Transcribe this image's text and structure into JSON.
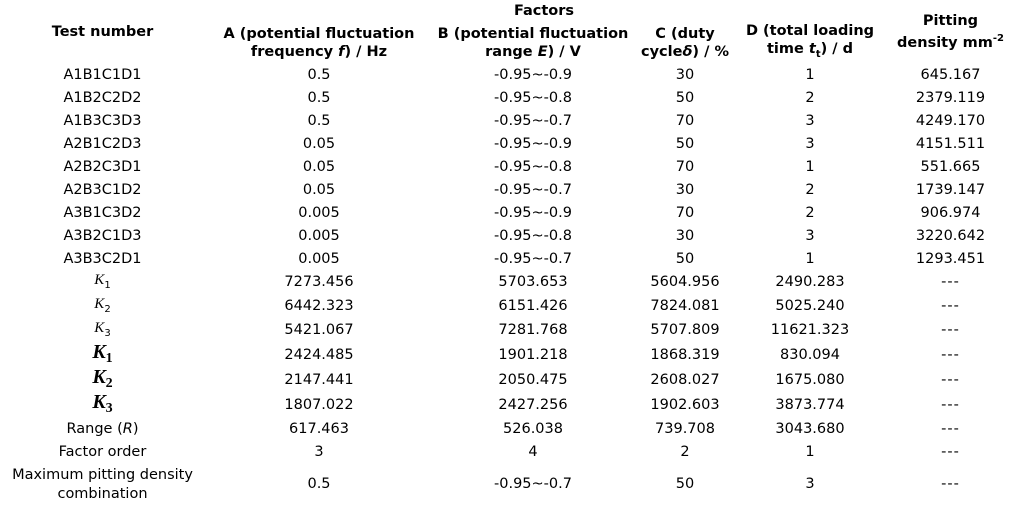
{
  "header": {
    "factors_label": "Factors",
    "test_number": "Test number",
    "col_a": [
      "A (potential fluctuation",
      "frequency ",
      "f",
      ") / Hz"
    ],
    "col_b": [
      "B (potential fluctuation",
      "range ",
      "E",
      ") / V"
    ],
    "col_c": [
      "C (duty",
      "cycle",
      "δ",
      ") / %"
    ],
    "col_d": [
      "D (total loading",
      "time ",
      "t",
      "t",
      ") / d"
    ],
    "col_pit": [
      "Pitting",
      "density mm",
      "-2"
    ]
  },
  "rows": [
    [
      "A1B1C1D1",
      "0.5",
      "-0.95~-0.9",
      "30",
      "1",
      "645.167"
    ],
    [
      "A1B2C2D2",
      "0.5",
      "-0.95~-0.8",
      "50",
      "2",
      "2379.119"
    ],
    [
      "A1B3C3D3",
      "0.5",
      "-0.95~-0.7",
      "70",
      "3",
      "4249.170"
    ],
    [
      "A2B1C2D3",
      "0.05",
      "-0.95~-0.9",
      "50",
      "3",
      "4151.511"
    ],
    [
      "A2B2C3D1",
      "0.05",
      "-0.95~-0.8",
      "70",
      "1",
      "551.665"
    ],
    [
      "A2B3C1D2",
      "0.05",
      "-0.95~-0.7",
      "30",
      "2",
      "1739.147"
    ],
    [
      "A3B1C3D2",
      "0.005",
      "-0.95~-0.9",
      "70",
      "2",
      "906.974"
    ],
    [
      "A3B2C1D3",
      "0.005",
      "-0.95~-0.8",
      "30",
      "3",
      "3220.642"
    ],
    [
      "A3B3C2D1",
      "0.005",
      "-0.95~-0.7",
      "50",
      "1",
      "1293.451"
    ]
  ],
  "k_rows": [
    [
      "K",
      "1",
      "7273.456",
      "5703.653",
      "5604.956",
      "2490.283",
      "---"
    ],
    [
      "K",
      "2",
      "6442.323",
      "6151.426",
      "7824.081",
      "5025.240",
      "---"
    ],
    [
      "K",
      "3",
      "5421.067",
      "7281.768",
      "5707.809",
      "11621.323",
      "---"
    ]
  ],
  "kbar_rows": [
    [
      "K",
      "1",
      "2424.485",
      "1901.218",
      "1868.319",
      "830.094",
      "---"
    ],
    [
      "K",
      "2",
      "2147.441",
      "2050.475",
      "2608.027",
      "1675.080",
      "---"
    ],
    [
      "K",
      "3",
      "1807.022",
      "2427.256",
      "1902.603",
      "3873.774",
      "---"
    ]
  ],
  "range_row": {
    "label": "Range (",
    "label_sym": "R",
    "label_end": ")",
    "values": [
      "617.463",
      "526.038",
      "739.708",
      "3043.680",
      "---"
    ]
  },
  "order_row": {
    "label": "Factor order",
    "values": [
      "3",
      "4",
      "2",
      "1",
      "---"
    ]
  },
  "max_row": {
    "label_1": "Maximum pitting density",
    "label_2": "combination",
    "values": [
      "0.5",
      "-0.95~-0.7",
      "50",
      "3",
      "---"
    ]
  }
}
